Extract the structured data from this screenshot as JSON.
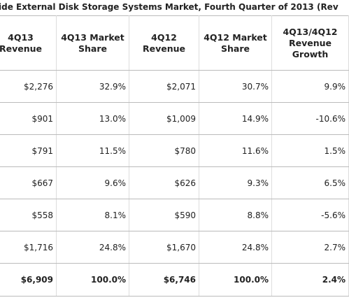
{
  "title": "ide External Disk Storage Systems Market, Fourth Quarter of 2013 (Rev",
  "table": {
    "header": [
      "4Q13 Revenue",
      "4Q13 Market Share",
      "4Q12 Revenue",
      "4Q12 Market Share",
      "4Q13/4Q12 Revenue Growth"
    ],
    "rows": [
      [
        "$2,276",
        "32.9%",
        "$2,071",
        "30.7%",
        "9.9%"
      ],
      [
        "$901",
        "13.0%",
        "$1,009",
        "14.9%",
        "-10.6%"
      ],
      [
        "$791",
        "11.5%",
        "$780",
        "11.6%",
        "1.5%"
      ],
      [
        "$667",
        "9.6%",
        "$626",
        "9.3%",
        "6.5%"
      ],
      [
        "$558",
        "8.1%",
        "$590",
        "8.8%",
        "-5.6%"
      ],
      [
        "$1,716",
        "24.8%",
        "$1,670",
        "24.8%",
        "2.7%"
      ]
    ],
    "total": [
      "$6,909",
      "100.0%",
      "$6,746",
      "100.0%",
      "2.4%"
    ]
  }
}
